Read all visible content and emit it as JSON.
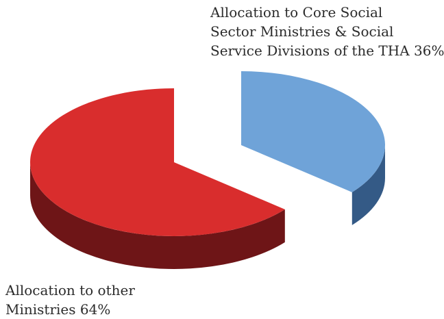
{
  "chart_data": {
    "type": "pie",
    "style": "3d-exploded",
    "title": "",
    "slices": [
      {
        "label_lines": [
          "Allocation to other",
          "Ministries 64%"
        ],
        "value": 64,
        "top_color": "#d92d2d",
        "side_color": "#6e1517"
      },
      {
        "label_lines": [
          "Allocation to Core Social",
          "Sector Ministries & Social",
          "Service Divisions of the THA 36%"
        ],
        "value": 36,
        "top_color": "#6fa3d8",
        "side_color": "#345a86"
      }
    ]
  }
}
